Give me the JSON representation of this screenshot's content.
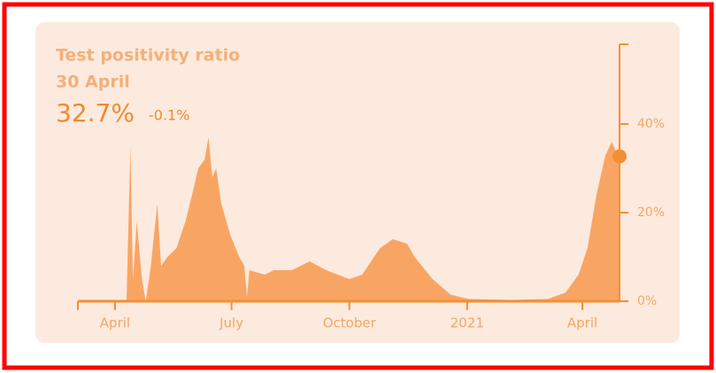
{
  "chart_data": {
    "type": "area",
    "title": "Test positivity ratio",
    "subtitle": "30 April",
    "current_value": "32.7%",
    "change": "-0.1%",
    "x": [
      29,
      38,
      41,
      43,
      46,
      50,
      53,
      57,
      62,
      65,
      70,
      77,
      84,
      90,
      94,
      99,
      102,
      105,
      108,
      112,
      119,
      126,
      130,
      132,
      134,
      146,
      153,
      167,
      181,
      194,
      212,
      222,
      236,
      246,
      257,
      263,
      277,
      291,
      305,
      339,
      367,
      381,
      391,
      398,
      405,
      412,
      417,
      420,
      423
    ],
    "values": [
      0,
      0,
      35,
      5,
      18,
      5,
      0,
      8,
      22,
      8,
      10,
      12,
      18,
      25,
      30,
      32,
      37,
      28,
      30,
      22,
      15,
      10,
      8,
      1,
      7,
      6,
      7,
      7,
      9,
      7,
      5,
      6,
      12,
      14,
      13,
      10,
      5,
      1.5,
      0.5,
      0.3,
      0.5,
      2,
      6,
      12,
      24,
      33,
      36,
      34,
      32.7
    ],
    "color": "#f8a564",
    "axis_color": "#f39033",
    "xlim": [
      0,
      423
    ],
    "xticks": [
      {
        "value": 29,
        "label": "April"
      },
      {
        "value": 120,
        "label": "July"
      },
      {
        "value": 212,
        "label": "October"
      },
      {
        "value": 304,
        "label": "2021"
      },
      {
        "value": 394,
        "label": "April"
      }
    ],
    "ylim": [
      0,
      58
    ],
    "yticks": [
      {
        "value": 0,
        "label": "0%"
      },
      {
        "value": 20,
        "label": "20%"
      },
      {
        "value": 40,
        "label": "40%"
      }
    ]
  }
}
